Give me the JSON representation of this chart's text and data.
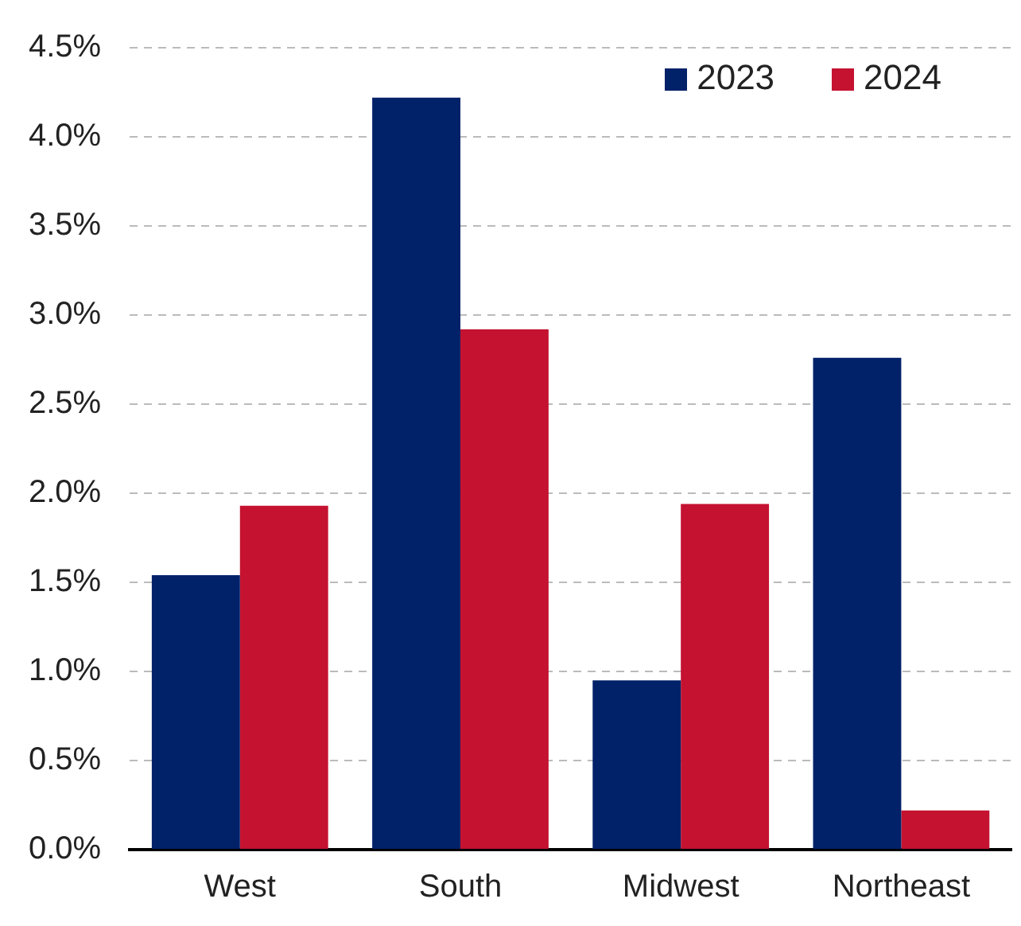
{
  "chart_data": {
    "type": "bar",
    "categories": [
      "West",
      "South",
      "Midwest",
      "Northeast"
    ],
    "series": [
      {
        "name": "2023",
        "color": "#012169",
        "values": [
          1.54,
          4.22,
          0.95,
          2.76
        ]
      },
      {
        "name": "2024",
        "color": "#c41230",
        "values": [
          1.93,
          2.92,
          1.94,
          0.22
        ]
      }
    ],
    "ylim": [
      0,
      4.5
    ],
    "yticks": [
      {
        "value": 0,
        "label": "0.0%"
      },
      {
        "value": 0.5,
        "label": "0.5%"
      },
      {
        "value": 1,
        "label": "1.0%"
      },
      {
        "value": 1.5,
        "label": "1.5%"
      },
      {
        "value": 2,
        "label": "2.0%"
      },
      {
        "value": 2.5,
        "label": "2.5%"
      },
      {
        "value": 3,
        "label": "3.0%"
      },
      {
        "value": 3.5,
        "label": "3.5%"
      },
      {
        "value": 4,
        "label": "4.0%"
      },
      {
        "value": 4.5,
        "label": "4.5%"
      }
    ],
    "grid": "y",
    "legend": "top right"
  }
}
